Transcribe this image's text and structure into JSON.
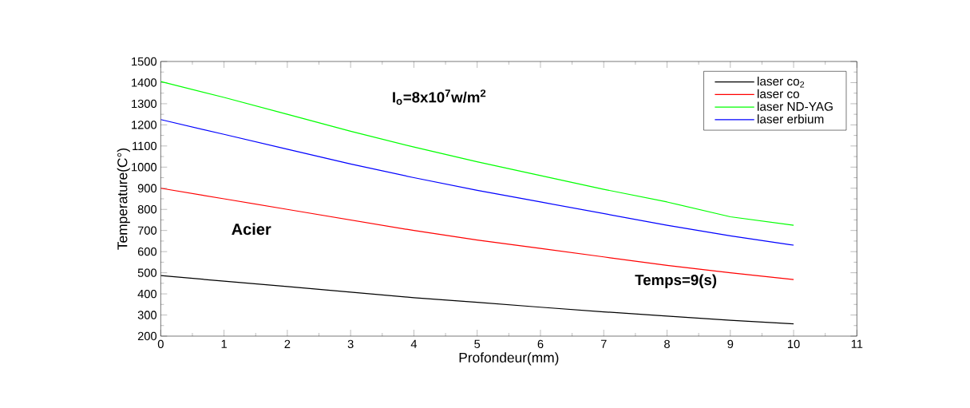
{
  "chart_data": {
    "type": "line",
    "xlabel": "Profondeur(mm)",
    "ylabel": "Temperature(C°)",
    "x": [
      0,
      1,
      2,
      3,
      4,
      5,
      6,
      7,
      8,
      9,
      10
    ],
    "series": [
      {
        "name": "laser co$_{2}$",
        "color": "#000000",
        "values": [
          487,
          460,
          435,
          408,
          382,
          360,
          337,
          315,
          295,
          275,
          258
        ]
      },
      {
        "name": "laser co",
        "color": "#ff0000",
        "values": [
          900,
          850,
          800,
          750,
          700,
          655,
          615,
          575,
          535,
          500,
          468
        ]
      },
      {
        "name": "laser ND-YAG",
        "color": "#00ff00",
        "values": [
          1405,
          1330,
          1250,
          1170,
          1095,
          1025,
          960,
          895,
          835,
          765,
          725
        ]
      },
      {
        "name": "laser erbium",
        "color": "#0000ff",
        "values": [
          1225,
          1155,
          1085,
          1015,
          950,
          890,
          835,
          780,
          725,
          675,
          630
        ]
      }
    ],
    "xlim": [
      0,
      11
    ],
    "ylim": [
      200,
      1500
    ],
    "xticks": [
      0,
      1,
      2,
      3,
      4,
      5,
      6,
      7,
      8,
      9,
      10,
      11
    ],
    "yticks": [
      200,
      300,
      400,
      500,
      600,
      700,
      800,
      900,
      1000,
      1100,
      1200,
      1300,
      1400,
      1500
    ],
    "legend": "top right",
    "grid": false,
    "marker": "none",
    "line_style": "solid",
    "annotations": [
      "I$_{o}$=8x10$^{7}$w/m$^{2}$",
      "Acier",
      "Temps=9(s)"
    ]
  }
}
